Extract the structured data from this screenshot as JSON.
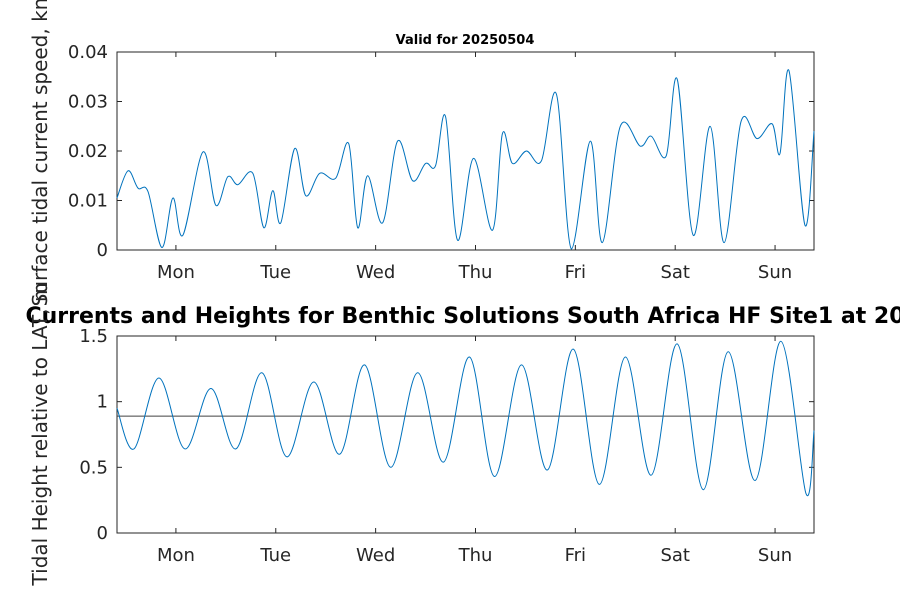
{
  "figure": {
    "main_title": "Currents and Heights for Benthic Solutions South Africa HF Site1 at 20",
    "colors": {
      "series": "#0072BD",
      "reference": "#404040",
      "axis": "#262626",
      "background": "#ffffff"
    }
  },
  "chart_data": [
    {
      "type": "line",
      "title": "Valid for 20250504",
      "ylabel": "Surface tidal current speed, kn",
      "xlabel": "",
      "x_unit": "days (Mon 00:00 = 1)",
      "xlim": [
        0.41,
        7.39
      ],
      "ylim": [
        0,
        0.04
      ],
      "yticks": [
        0,
        0.01,
        0.02,
        0.03,
        0.04
      ],
      "ytick_labels": [
        "0",
        "0.01",
        "0.02",
        "0.03",
        "0.04"
      ],
      "xticks": [
        1,
        2,
        3,
        4,
        5,
        6,
        7
      ],
      "xtick_labels": [
        "Mon",
        "Tue",
        "Wed",
        "Thu",
        "Fri",
        "Sat",
        "Sun"
      ],
      "grid": false,
      "series": [
        {
          "x": [
            0.41,
            0.52,
            0.62,
            0.72,
            0.86,
            0.97,
            1.07,
            1.27,
            1.4,
            1.52,
            1.62,
            1.77,
            1.88,
            1.97,
            2.05,
            2.19,
            2.3,
            2.44,
            2.6,
            2.73,
            2.82,
            2.92,
            3.07,
            3.22,
            3.37,
            3.5,
            3.6,
            3.7,
            3.82,
            3.98,
            4.17,
            4.27,
            4.37,
            4.51,
            4.66,
            4.81,
            4.96,
            5.15,
            5.27,
            5.45,
            5.65,
            5.76,
            5.91,
            6.02,
            6.18,
            6.35,
            6.49,
            6.66,
            6.82,
            6.97,
            7.05,
            7.14,
            7.3,
            7.39
          ],
          "y": [
            0.0105,
            0.016,
            0.0125,
            0.0118,
            0.0005,
            0.0105,
            0.003,
            0.0198,
            0.009,
            0.0148,
            0.0132,
            0.0155,
            0.0045,
            0.012,
            0.0055,
            0.0205,
            0.011,
            0.0155,
            0.0145,
            0.0215,
            0.0045,
            0.015,
            0.0055,
            0.022,
            0.014,
            0.0175,
            0.017,
            0.027,
            0.002,
            0.0185,
            0.004,
            0.0235,
            0.0175,
            0.02,
            0.018,
            0.0315,
            0.0,
            0.022,
            0.0015,
            0.025,
            0.021,
            0.023,
            0.019,
            0.0345,
            0.003,
            0.025,
            0.0015,
            0.026,
            0.0225,
            0.0255,
            0.0195,
            0.0362,
            0.005,
            0.024
          ]
        }
      ]
    },
    {
      "type": "line",
      "title": "",
      "ylabel": "Tidal Height relative to LAT, m",
      "xlabel": "",
      "xlim": [
        0.41,
        7.39
      ],
      "ylim": [
        0,
        1.5
      ],
      "yticks": [
        0,
        0.5,
        1,
        1.5
      ],
      "ytick_labels": [
        "0",
        "0.5",
        "1",
        "1.5"
      ],
      "xticks": [
        1,
        2,
        3,
        4,
        5,
        6,
        7
      ],
      "xtick_labels": [
        "Mon",
        "Tue",
        "Wed",
        "Thu",
        "Fri",
        "Sat",
        "Sun"
      ],
      "grid": false,
      "reference_line": 0.89,
      "series": [
        {
          "x": [
            0.41,
            0.58,
            0.83,
            1.09,
            1.35,
            1.6,
            1.86,
            2.11,
            2.38,
            2.64,
            2.89,
            3.15,
            3.42,
            3.68,
            3.94,
            4.19,
            4.46,
            4.72,
            4.98,
            5.24,
            5.5,
            5.76,
            6.02,
            6.28,
            6.53,
            6.8,
            7.06,
            7.31,
            7.39
          ],
          "y": [
            0.95,
            0.64,
            1.18,
            0.64,
            1.1,
            0.64,
            1.22,
            0.58,
            1.15,
            0.6,
            1.28,
            0.5,
            1.22,
            0.54,
            1.34,
            0.43,
            1.28,
            0.48,
            1.4,
            0.37,
            1.34,
            0.44,
            1.44,
            0.33,
            1.38,
            0.4,
            1.46,
            0.3,
            0.78
          ]
        }
      ]
    }
  ]
}
